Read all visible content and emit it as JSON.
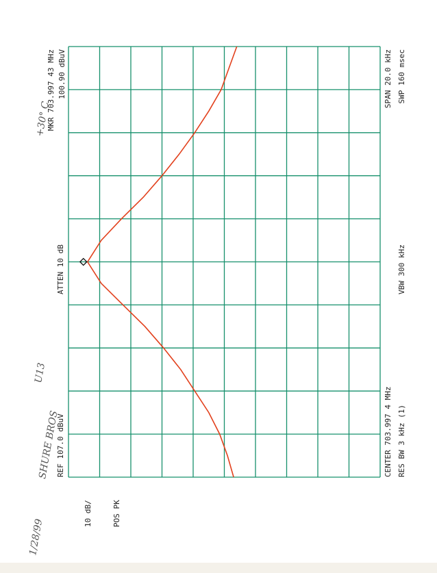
{
  "chart_data": {
    "type": "line",
    "handwritten": {
      "date": "1/28/99",
      "maker": "SHURE BROS",
      "model": "U13",
      "temperature": "+30° C"
    },
    "annotations": {
      "scale": "10 dB/",
      "detector": "POS PK",
      "ref": "REF  107.0 dBuV",
      "atten": "ATTEN 10 dB",
      "marker_freq": "MKR 703.997 43 MHz",
      "marker_level": "100.90 dBuV",
      "center": "CENTER 703.997 4 MHz",
      "rbw": "RES BW 3 kHz (1)",
      "vbw": "VBW 300 kHz",
      "span": "SPAN 20.0 kHz",
      "sweep": "SWP 160 msec"
    },
    "x": [
      703.9874,
      703.9884,
      703.9894,
      703.9904,
      703.9914,
      703.9924,
      703.9934,
      703.9944,
      703.9954,
      703.9964,
      703.9974,
      703.9984,
      703.9994,
      704.0004,
      704.0014,
      704.0024,
      704.0034,
      704.0044,
      704.0054,
      704.0064,
      704.0074
    ],
    "series": [
      {
        "color": "#e2401c",
        "values": [
          54,
          56,
          58.5,
          62,
          66.5,
          71,
          76.5,
          82.5,
          89.5,
          96.5,
          100.9,
          96.5,
          90,
          83,
          77,
          71.5,
          66.5,
          62,
          58,
          55.5,
          53
        ]
      }
    ],
    "xlim": [
      703.9874,
      704.0074
    ],
    "ylim": [
      7,
      107
    ],
    "grid": true
  }
}
